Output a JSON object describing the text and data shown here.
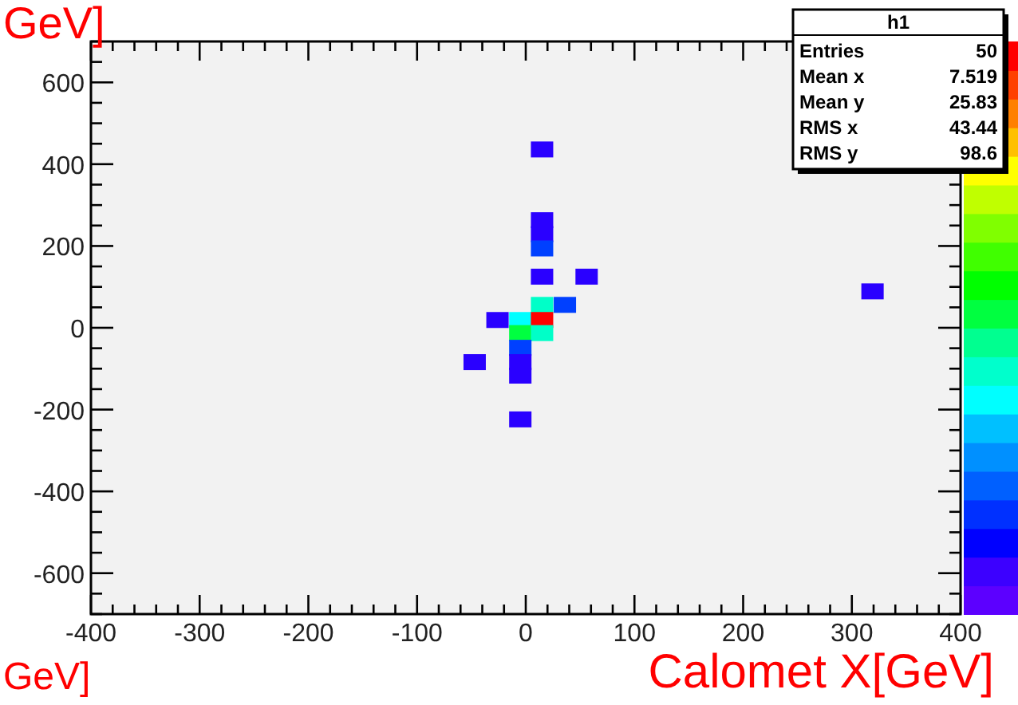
{
  "chart_data": {
    "type": "scatter",
    "xlabel": "Calomet X[GeV]",
    "ylabel": "GeV]",
    "x": [
      15,
      15,
      15,
      15,
      15,
      56,
      15,
      36,
      -26,
      -5,
      15,
      -5,
      15,
      -5,
      -5,
      -5,
      -47,
      -5,
      319
    ],
    "values": [
      436,
      263,
      229,
      194,
      125,
      125,
      56,
      56,
      19,
      19,
      19,
      -13,
      -13,
      -49,
      -84,
      -117,
      -84,
      -224,
      89
    ],
    "colors": [
      "#2a00ff",
      "#2a00ff",
      "#2a00ff",
      "#0040ff",
      "#2a00ff",
      "#2a00ff",
      "#00ffc8",
      "#0040ff",
      "#2a00ff",
      "#00ffff",
      "#ff0000",
      "#00ff40",
      "#00ffc8",
      "#0040ff",
      "#2a00ff",
      "#2a00ff",
      "#2a00ff",
      "#2a00ff",
      "#2a00ff"
    ],
    "marker": "square",
    "xlim": [
      -400,
      400
    ],
    "xticks": [
      -400,
      -300,
      -200,
      -100,
      0,
      100,
      200,
      300,
      400
    ],
    "ylim": [
      -700,
      700
    ],
    "yticks": [
      -600,
      -400,
      -200,
      0,
      200,
      400,
      600
    ],
    "grid": false,
    "annotations": [
      "h1",
      "Entries",
      "50",
      "Mean x",
      "7.519",
      "Mean y",
      "25.83",
      "RMS x",
      "43.44",
      "RMS y",
      "98.6",
      "GeV]"
    ]
  }
}
